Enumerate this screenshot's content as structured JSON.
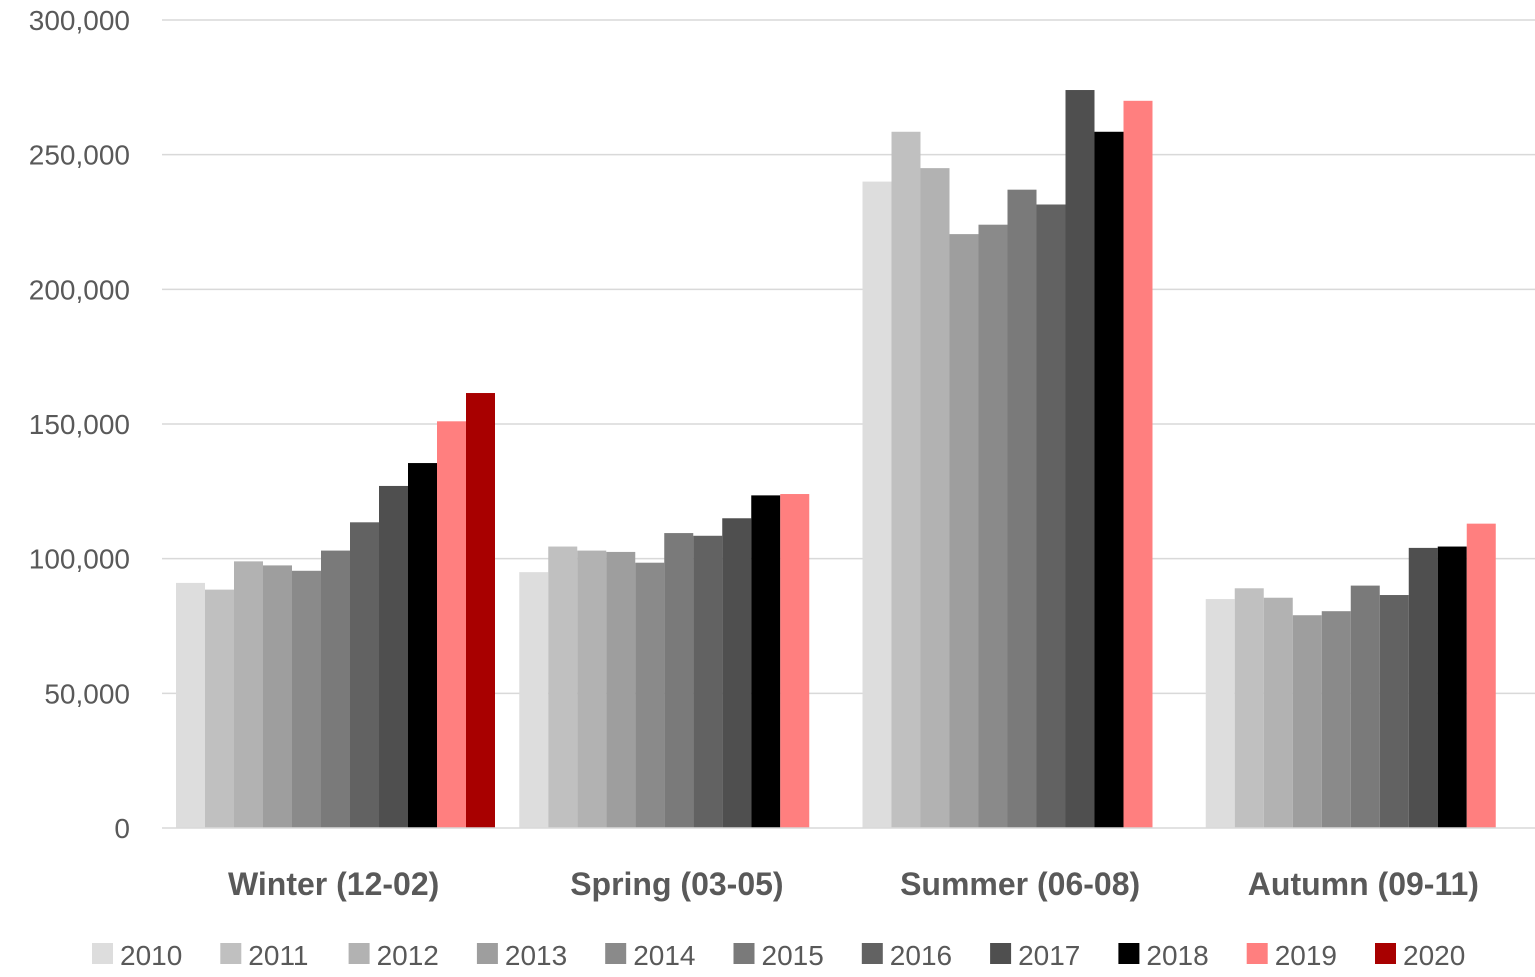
{
  "chart_data": {
    "type": "bar",
    "title": "",
    "xlabel": "",
    "ylabel": "",
    "ylim": [
      0,
      300000
    ],
    "yticks": [
      0,
      50000,
      100000,
      150000,
      200000,
      250000,
      300000
    ],
    "ytick_labels": [
      "0",
      "50,000",
      "100,000",
      "150,000",
      "200,000",
      "250,000",
      "300,000"
    ],
    "grid": true,
    "legend_position": "bottom",
    "categories": [
      "Winter (12-02)",
      "Spring (03-05)",
      "Summer (06-08)",
      "Autumn (09-11)"
    ],
    "series": [
      {
        "name": "2010",
        "color": "#dddddd",
        "values": [
          91000,
          95000,
          240000,
          85000
        ]
      },
      {
        "name": "2011",
        "color": "#c0c0c0",
        "values": [
          88500,
          104500,
          258500,
          89000
        ]
      },
      {
        "name": "2012",
        "color": "#b2b2b2",
        "values": [
          99000,
          103000,
          245000,
          85500
        ]
      },
      {
        "name": "2013",
        "color": "#9e9e9e",
        "values": [
          97500,
          102500,
          220500,
          79000
        ]
      },
      {
        "name": "2014",
        "color": "#8a8a8a",
        "values": [
          95500,
          98500,
          224000,
          80500
        ]
      },
      {
        "name": "2015",
        "color": "#7a7a7a",
        "values": [
          103000,
          109500,
          237000,
          90000
        ]
      },
      {
        "name": "2016",
        "color": "#626262",
        "values": [
          113500,
          108500,
          231500,
          86500
        ]
      },
      {
        "name": "2017",
        "color": "#4f4f4f",
        "values": [
          127000,
          115000,
          274000,
          104000
        ]
      },
      {
        "name": "2018",
        "color": "#000000",
        "values": [
          135500,
          123500,
          258500,
          104500
        ]
      },
      {
        "name": "2019",
        "color": "#ff7f7f",
        "values": [
          151000,
          124000,
          270000,
          113000
        ]
      },
      {
        "name": "2020",
        "color": "#a80000",
        "values": [
          161500,
          null,
          null,
          null
        ]
      }
    ]
  }
}
